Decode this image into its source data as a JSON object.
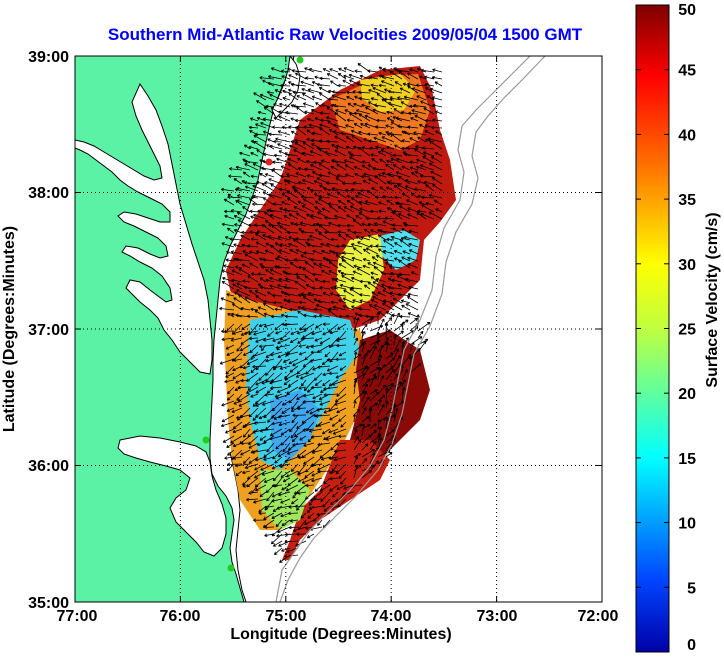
{
  "title": "Southern Mid-Atlantic Raw Velocities 2009/05/04 1500 GMT",
  "xlabel": "Longitude (Degrees:Minutes)",
  "ylabel": "Latitude (Degrees:Minutes)",
  "colorbar": {
    "label": "Surface Velocity (cm/s)",
    "ticks": [
      "0",
      "5",
      "10",
      "15",
      "20",
      "25",
      "30",
      "35",
      "40",
      "45",
      "50"
    ],
    "range": [
      0,
      50
    ],
    "colormap": "jet"
  },
  "map": {
    "lon_range": [
      -77,
      -72
    ],
    "lat_range": [
      35,
      39
    ],
    "x_ticks": [
      "77:00",
      "76:00",
      "75:00",
      "74:00",
      "73:00",
      "72:00"
    ],
    "y_ticks": [
      "35:00",
      "36:00",
      "37:00",
      "38:00",
      "39:00"
    ],
    "grid": "dotted",
    "land_color": "#5cf2a5",
    "coast_color": "#000000",
    "bathymetry_color": "#9a9a9a",
    "vector_color": "#000000",
    "station_colors": [
      "#22cc22",
      "#dd2222"
    ]
  }
}
